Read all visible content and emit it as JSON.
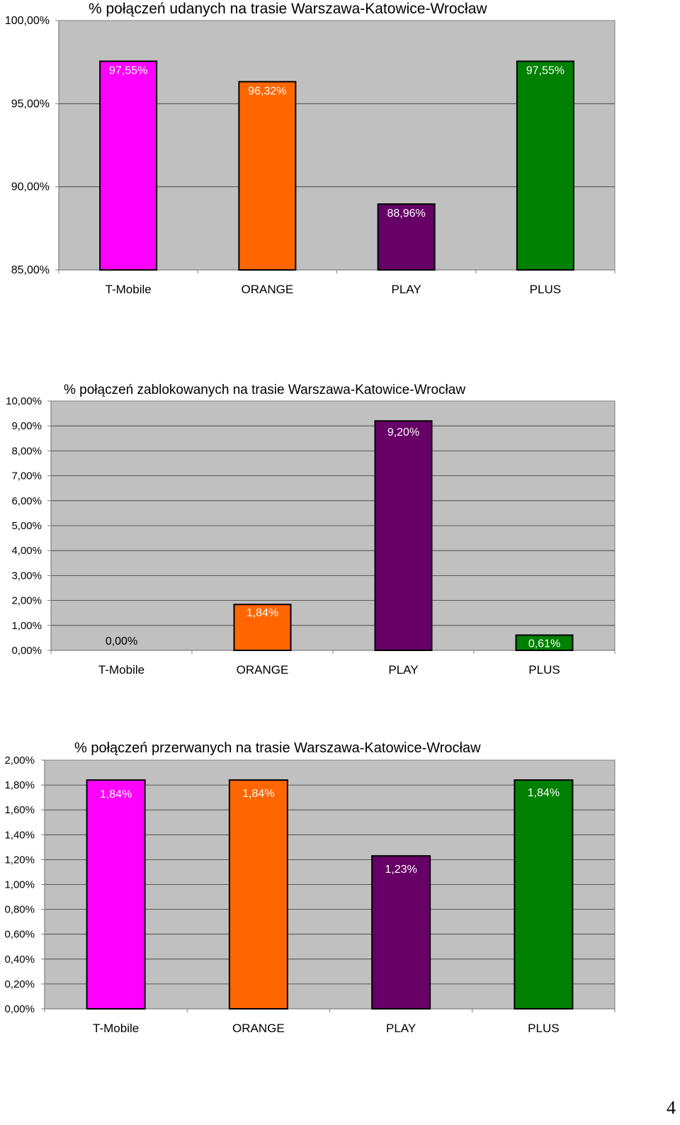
{
  "chart_data": [
    {
      "type": "bar",
      "title": "% połączeń udanych na trasie Warszawa-Katowice-Wrocław",
      "categories": [
        "T-Mobile",
        "ORANGE",
        "PLAY",
        "PLUS"
      ],
      "values": [
        97.55,
        96.32,
        88.96,
        97.55
      ],
      "value_labels": [
        "97,55%",
        "96,32%",
        "88,96%",
        "97,55%"
      ],
      "colors": [
        "#ff00ff",
        "#ff6600",
        "#660066",
        "#008000"
      ],
      "ylim": [
        85,
        100
      ],
      "yticks": [
        85,
        90,
        95,
        100
      ],
      "ytick_labels": [
        "85,00%",
        "90,00%",
        "95,00%",
        "100,00%"
      ],
      "grid": true,
      "legend": "none"
    },
    {
      "type": "bar",
      "title": "% połączeń zablokowanych na trasie Warszawa-Katowice-Wrocław",
      "categories": [
        "T-Mobile",
        "ORANGE",
        "PLAY",
        "PLUS"
      ],
      "values": [
        0,
        1.84,
        9.2,
        0.61
      ],
      "value_labels": [
        "0,00%",
        "1,84%",
        "9,20%",
        "0,61%"
      ],
      "colors": [
        "#ff00ff",
        "#ff6600",
        "#660066",
        "#008000"
      ],
      "ylim": [
        0,
        10
      ],
      "yticks": [
        0,
        1,
        2,
        3,
        4,
        5,
        6,
        7,
        8,
        9,
        10
      ],
      "ytick_labels": [
        "0,00%",
        "1,00%",
        "2,00%",
        "3,00%",
        "4,00%",
        "5,00%",
        "6,00%",
        "7,00%",
        "8,00%",
        "9,00%",
        "10,00%"
      ],
      "grid": true,
      "legend": "none"
    },
    {
      "type": "bar",
      "title": "% połączeń przerwanych na trasie Warszawa-Katowice-Wrocław",
      "categories": [
        "T-Mobile",
        "ORANGE",
        "PLAY",
        "PLUS"
      ],
      "values": [
        1.84,
        1.84,
        1.23,
        1.84
      ],
      "value_labels": [
        "1,84%",
        "1,84%",
        "1,23%",
        "1,84%"
      ],
      "colors": [
        "#ff00ff",
        "#ff6600",
        "#660066",
        "#008000"
      ],
      "ylim": [
        0,
        2
      ],
      "yticks": [
        0,
        0.2,
        0.4,
        0.6,
        0.8,
        1.0,
        1.2,
        1.4,
        1.6,
        1.8,
        2.0
      ],
      "ytick_labels": [
        "0,00%",
        "0,20%",
        "0,40%",
        "0,60%",
        "0,80%",
        "1,00%",
        "1,20%",
        "1,40%",
        "1,60%",
        "1,80%",
        "2,00%"
      ],
      "grid": true,
      "legend": "none"
    }
  ],
  "page": {
    "number": "4"
  }
}
